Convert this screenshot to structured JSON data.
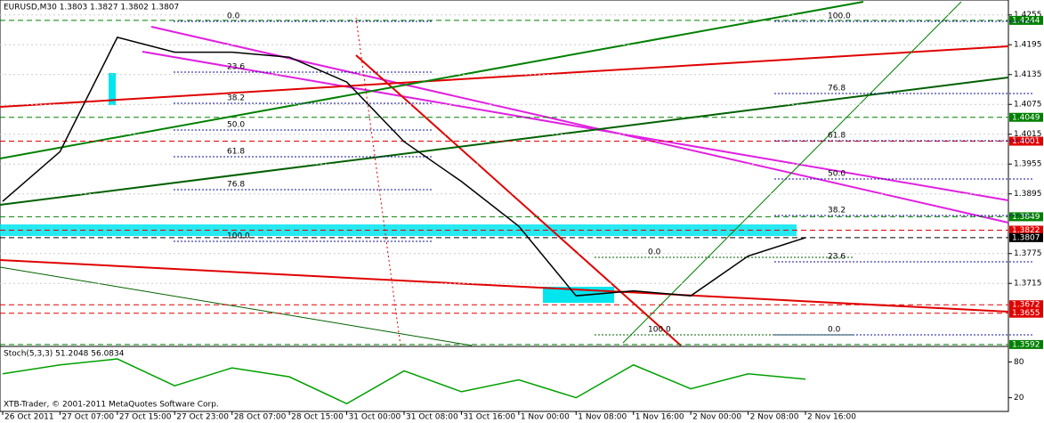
{
  "chart_data": [
    {
      "type": "line",
      "title": "EURUSD,M30 1.3803 1.3827 1.3802 1.3807",
      "categories": [
        "26 Oct 2011",
        "27 Oct 07:00",
        "27 Oct 15:00",
        "27 Oct 23:00",
        "28 Oct 07:00",
        "28 Oct 15:00",
        "31 Oct 00:00",
        "31 Oct 08:00",
        "31 Oct 16:00",
        "1 Nov 00:00",
        "1 Nov 08:00",
        "1 Nov 16:00",
        "2 Nov 00:00",
        "2 Nov 08:00",
        "2 Nov 16:00"
      ],
      "values": [
        1.388,
        1.398,
        1.421,
        1.418,
        1.418,
        1.417,
        1.412,
        1.4,
        1.392,
        1.383,
        1.369,
        1.37,
        1.369,
        1.377,
        1.3807
      ],
      "color": "#000000",
      "ylim": [
        1.359,
        1.4285
      ],
      "yticks": [
        1.4255,
        1.4195,
        1.4135,
        1.4075,
        1.4015,
        1.3955,
        1.3895,
        1.3775,
        1.3715
      ],
      "grid": true,
      "levels": [
        {
          "value": 1.4244,
          "color": "#008000"
        },
        {
          "value": 1.4049,
          "color": "#008000"
        },
        {
          "value": 1.4001,
          "color": "#e00000"
        },
        {
          "value": 1.3849,
          "color": "#008000"
        },
        {
          "value": 1.3822,
          "color": "#e00000"
        },
        {
          "value": 1.3807,
          "color": "#000000"
        },
        {
          "value": 1.3672,
          "color": "#e00000"
        },
        {
          "value": 1.3655,
          "color": "#e00000"
        },
        {
          "value": 1.3592,
          "color": "#008000"
        }
      ],
      "fibo_left": [
        "0.0",
        "23.6",
        "38.2",
        "50.0",
        "61.8",
        "76.8",
        "100.0"
      ],
      "fibo_right": [
        "100.0",
        "76.8",
        "61.8",
        "50.0",
        "38.2",
        "23.6",
        "0.0"
      ],
      "fibo_small": [
        "0.0",
        "100.0"
      ]
    },
    {
      "type": "line",
      "title": "Stoch(5,3,3) 51.2048 56.0834",
      "categories": [
        "26 Oct 2011",
        "27 Oct 07:00",
        "27 Oct 15:00",
        "27 Oct 23:00",
        "28 Oct 07:00",
        "28 Oct 15:00",
        "31 Oct 00:00",
        "31 Oct 08:00",
        "31 Oct 16:00",
        "1 Nov 00:00",
        "1 Nov 08:00",
        "1 Nov 16:00",
        "2 Nov 00:00",
        "2 Nov 08:00",
        "2 Nov 16:00"
      ],
      "values": [
        60,
        75,
        85,
        40,
        70,
        55,
        10,
        65,
        30,
        50,
        20,
        75,
        35,
        60,
        51.2048
      ],
      "color": "#00a000",
      "ylim": [
        0,
        100
      ],
      "yticks": [
        80,
        20
      ],
      "footer": "XTB-Trader, © 2001-2011 MetaQuotes Software Corp."
    }
  ]
}
